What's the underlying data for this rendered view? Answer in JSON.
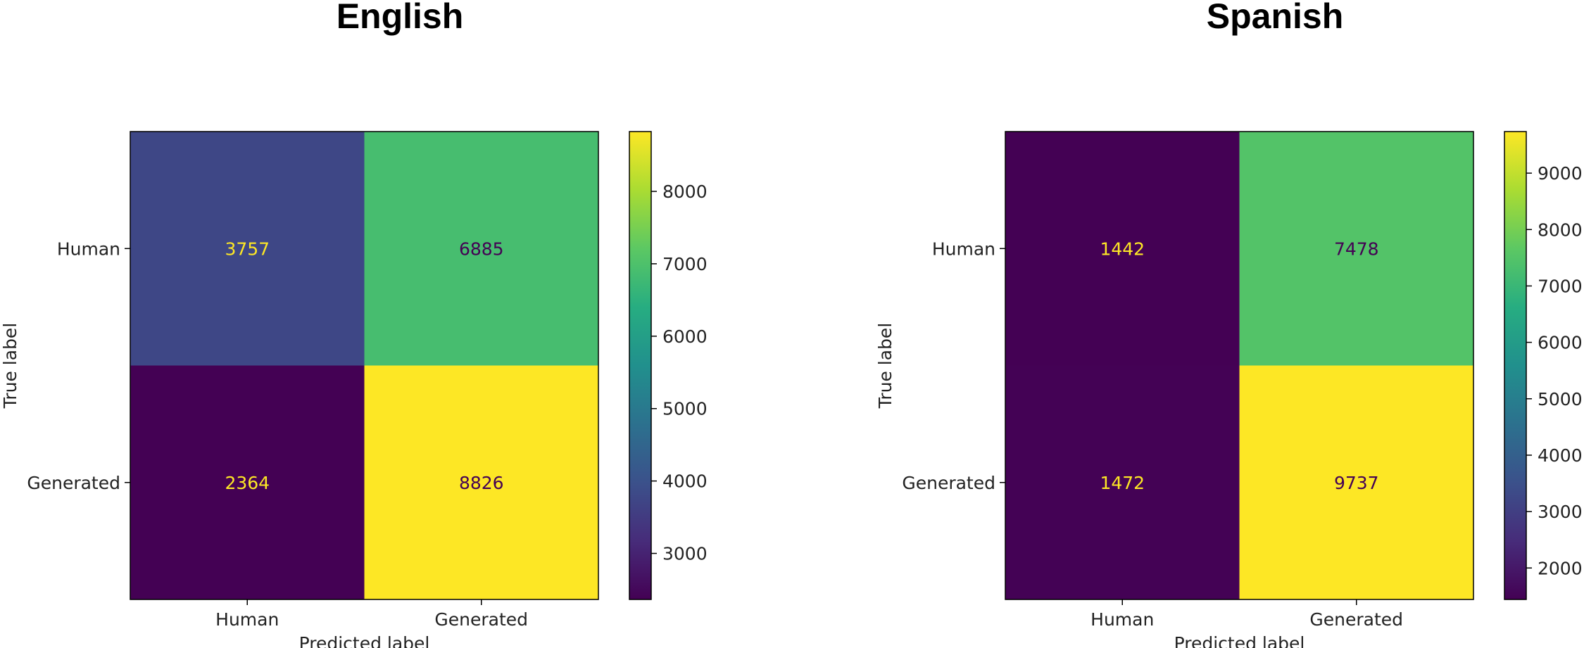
{
  "chart_data": [
    {
      "type": "heatmap",
      "title": "English",
      "xlabel": "Predicted label",
      "ylabel": "True label",
      "x_categories": [
        "Human",
        "Generated"
      ],
      "y_categories": [
        "Human",
        "Generated"
      ],
      "values": [
        [
          3757,
          6885
        ],
        [
          2364,
          8826
        ]
      ],
      "colormap": "viridis",
      "colorbar": {
        "range": [
          2364,
          8826
        ],
        "ticks": [
          3000,
          4000,
          5000,
          6000,
          7000,
          8000
        ]
      }
    },
    {
      "type": "heatmap",
      "title": "Spanish",
      "xlabel": "Predicted label",
      "ylabel": "True label",
      "x_categories": [
        "Human",
        "Generated"
      ],
      "y_categories": [
        "Human",
        "Generated"
      ],
      "values": [
        [
          1442,
          7478
        ],
        [
          1472,
          9737
        ]
      ],
      "colormap": "viridis",
      "colorbar": {
        "range": [
          1442,
          9737
        ],
        "ticks": [
          2000,
          3000,
          4000,
          5000,
          6000,
          7000,
          8000,
          9000
        ]
      }
    }
  ]
}
